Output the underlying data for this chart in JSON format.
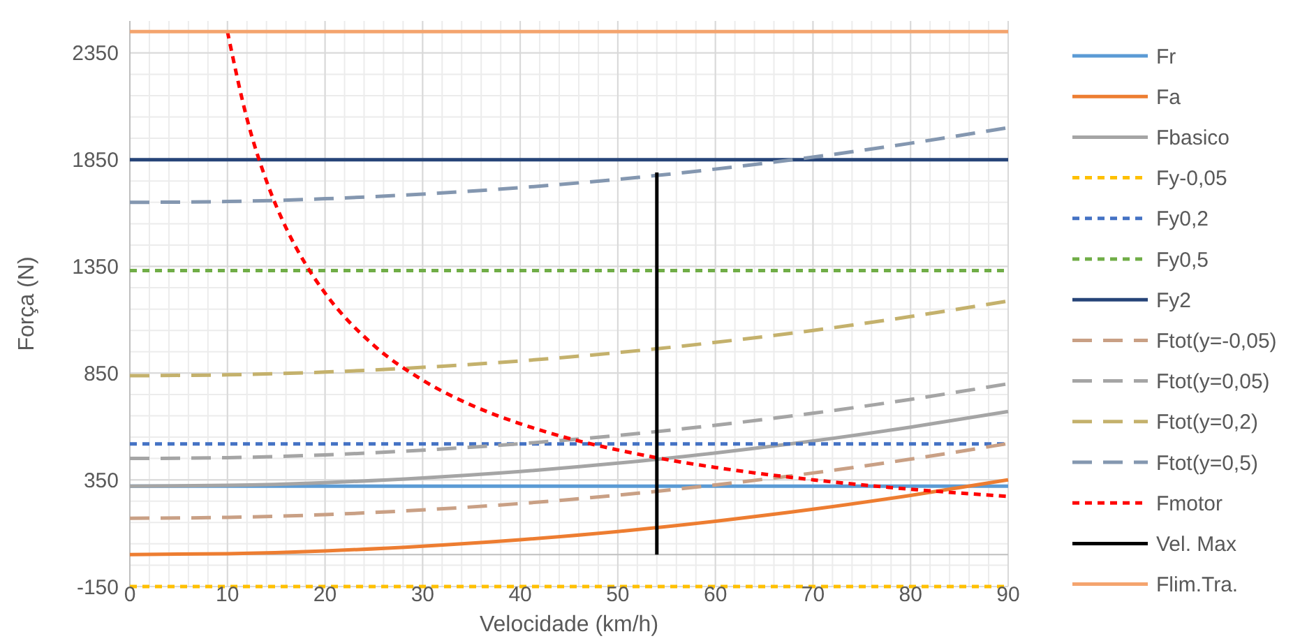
{
  "chart_data": {
    "type": "line",
    "xlabel": "Velocidade (km/h)",
    "ylabel": "Força (N)",
    "xlim": [
      0,
      90
    ],
    "xticks": [
      0,
      10,
      20,
      30,
      40,
      50,
      60,
      70,
      80,
      90
    ],
    "ylim": [
      -150,
      2500
    ],
    "yticks": [
      -150,
      350,
      850,
      1350,
      1850,
      2350
    ],
    "grid": true,
    "legend": "right",
    "marker": "none",
    "series": [
      {
        "name": "Fr",
        "color": "#5b9bd5",
        "line_style": "solid",
        "x": [
          0,
          90
        ],
        "values": [
          320,
          320
        ]
      },
      {
        "name": "Fa",
        "color": "#ed7d31",
        "line_style": "solid",
        "x": [
          0,
          10,
          20,
          30,
          40,
          50,
          60,
          70,
          80,
          90
        ],
        "values": [
          0,
          4,
          17,
          39,
          69,
          108,
          156,
          212,
          277,
          350
        ]
      },
      {
        "name": "Fbasico",
        "color": "#a5a5a5",
        "line_style": "solid",
        "x": [
          0,
          10,
          20,
          30,
          40,
          50,
          60,
          70,
          80,
          90
        ],
        "values": [
          320,
          324,
          337,
          359,
          389,
          428,
          476,
          532,
          597,
          670
        ]
      },
      {
        "name": "Fy-0,05",
        "color": "#ffc000",
        "line_style": "dotted",
        "x": [
          0,
          90
        ],
        "values": [
          -150,
          -150
        ]
      },
      {
        "name": "Fy0,2",
        "color": "#4472c4",
        "line_style": "dotted",
        "x": [
          0,
          90
        ],
        "values": [
          518,
          518
        ]
      },
      {
        "name": "Fy0,5",
        "color": "#70ad47",
        "line_style": "dotted",
        "x": [
          0,
          90
        ],
        "values": [
          1330,
          1330
        ]
      },
      {
        "name": "Fy2",
        "color": "#264478",
        "line_style": "solid",
        "x": [
          0,
          90
        ],
        "values": [
          1850,
          1850
        ]
      },
      {
        "name": "Ftot(y=-0,05)",
        "color": "#c9a085",
        "line_style": "dashed",
        "x": [
          0,
          10,
          20,
          30,
          40,
          50,
          60,
          70,
          80,
          90
        ],
        "values": [
          170,
          174,
          187,
          209,
          239,
          278,
          326,
          382,
          447,
          520
        ]
      },
      {
        "name": "Ftot(y=0,05)",
        "color": "#a5a5a5",
        "line_style": "dashed",
        "x": [
          0,
          10,
          20,
          30,
          40,
          50,
          60,
          70,
          80,
          90
        ],
        "values": [
          450,
          454,
          467,
          489,
          519,
          558,
          606,
          662,
          727,
          800
        ]
      },
      {
        "name": "Ftot(y=0,2)",
        "color": "#c4b16c",
        "line_style": "dashed",
        "x": [
          0,
          10,
          20,
          30,
          40,
          50,
          60,
          70,
          80,
          90
        ],
        "values": [
          838,
          842,
          855,
          877,
          907,
          946,
          994,
          1050,
          1115,
          1188
        ]
      },
      {
        "name": "Ftot(y=0,5)",
        "color": "#8497b0",
        "line_style": "dashed",
        "x": [
          0,
          10,
          20,
          30,
          40,
          50,
          60,
          70,
          80,
          90
        ],
        "values": [
          1650,
          1654,
          1667,
          1689,
          1719,
          1758,
          1806,
          1862,
          1927,
          2000
        ]
      },
      {
        "name": "Fmotor",
        "color": "#ff0000",
        "line_style": "dotted",
        "x": [
          10,
          12,
          14,
          16,
          18,
          20,
          25,
          30,
          35,
          40,
          45,
          50,
          55,
          60,
          70,
          80,
          90
        ],
        "values": [
          2450,
          2042,
          1750,
          1531,
          1361,
          1225,
          980,
          817,
          700,
          613,
          544,
          490,
          445,
          408,
          350,
          306,
          272
        ]
      },
      {
        "name": "Vel. Max",
        "color": "#000000",
        "line_style": "solid",
        "x": [
          54,
          54
        ],
        "values": [
          0,
          1790
        ]
      },
      {
        "name": "Flim.Tra.",
        "color": "#f4a46e",
        "line_style": "solid",
        "x": [
          0,
          90
        ],
        "values": [
          2450,
          2450
        ]
      }
    ]
  }
}
